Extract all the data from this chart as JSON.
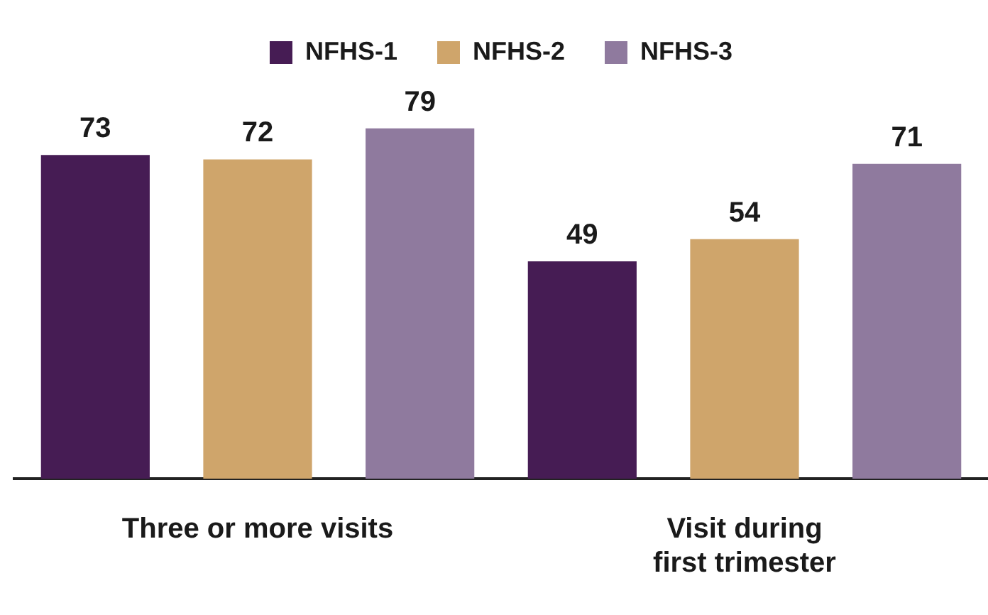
{
  "chart_data": {
    "type": "bar",
    "categories": [
      "Three or more visits",
      "Visit during first trimester"
    ],
    "series": [
      {
        "name": "NFHS-1",
        "color": "#461c54",
        "values": [
          73,
          49
        ]
      },
      {
        "name": "NFHS-2",
        "color": "#cfa56b",
        "values": [
          72,
          54
        ]
      },
      {
        "name": "NFHS-3",
        "color": "#8f7a9e",
        "values": [
          79,
          71
        ]
      }
    ],
    "data_labels": true,
    "legend": "top",
    "grid": false,
    "tick_labels": "x"
  }
}
